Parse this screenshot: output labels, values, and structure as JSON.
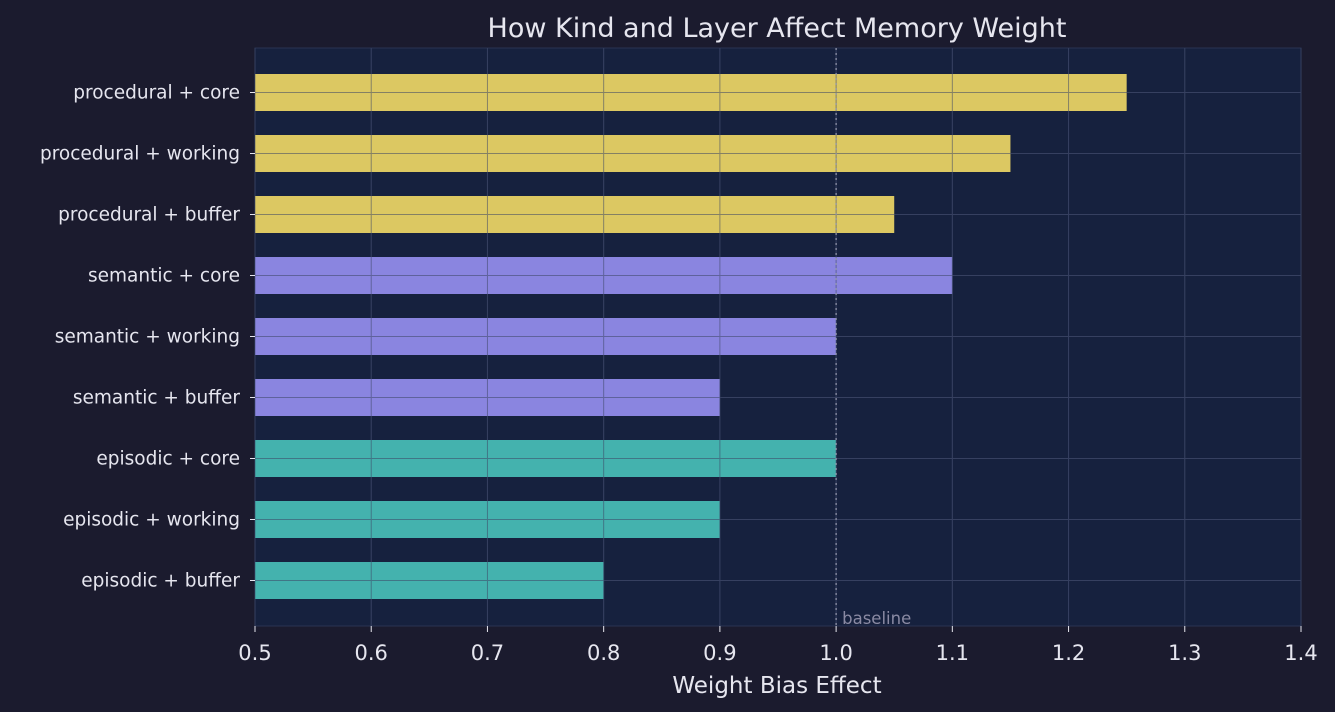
{
  "chart_data": {
    "type": "bar",
    "orientation": "horizontal",
    "title": "How Kind and Layer Affect Memory Weight",
    "xlabel": "Weight Bias Effect",
    "ylabel": "",
    "xlim": [
      0.5,
      1.4
    ],
    "xticks": [
      "0.5",
      "0.6",
      "0.7",
      "0.8",
      "0.9",
      "1.0",
      "1.1",
      "1.2",
      "1.3",
      "1.4"
    ],
    "grid": true,
    "categories": [
      "procedural + core",
      "procedural + working",
      "procedural + buffer",
      "semantic + core",
      "semantic + working",
      "semantic + buffer",
      "episodic + core",
      "episodic + working",
      "episodic + buffer"
    ],
    "values": [
      1.25,
      1.15,
      1.05,
      1.1,
      1.0,
      0.9,
      1.0,
      0.9,
      0.8
    ],
    "bar_colors": [
      "#dcc862",
      "#dcc862",
      "#dcc862",
      "#8a85e0",
      "#8a85e0",
      "#8a85e0",
      "#44b2ae",
      "#44b2ae",
      "#44b2ae"
    ],
    "reference_line": {
      "value": 1.0,
      "label": "baseline",
      "style": "dotted"
    }
  },
  "colors": {
    "background": "#1b1b2e",
    "plot_background": "#16213e",
    "text": "#e6e6ef",
    "procedural": "#dcc862",
    "semantic": "#8a85e0",
    "episodic": "#44b2ae"
  }
}
